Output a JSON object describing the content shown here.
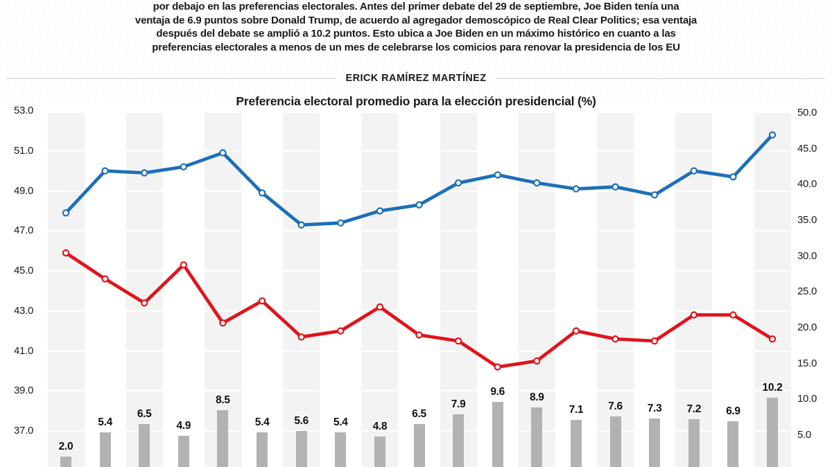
{
  "intro": {
    "lines": [
      "por debajo en las preferencias electorales. Antes del primer debate del 29 de septiembre, Joe Biden tenía una",
      "ventaja de 6.9 puntos sobre Donald Trump, de acuerdo al agregador demoscópico de Real Clear Politics; esa ventaja",
      "después del debate se amplió a 10.2 puntos. Esto ubica a Joe Biden en un máximo histórico en cuanto a las",
      "preferencias electorales a menos de un mes de celebrarse los comicios para renovar la presidencia de los EU"
    ]
  },
  "byline": "ERICK RAMÍREZ MARTÍNEZ",
  "chart_data": {
    "type": "line",
    "title": "Preferencia electoral promedio para la elección presidencial (%)",
    "subtitle": "",
    "x_labels_visible": false,
    "points_count": 19,
    "legend": "none",
    "grid": "faint horizontal",
    "background_stripes": "alternating light-gray vertical bands on odd points",
    "left_axis": {
      "min": 37.0,
      "max": 53.0,
      "step": 2.0,
      "ticks": [
        53.0,
        51.0,
        49.0,
        47.0,
        45.0,
        43.0,
        41.0,
        39.0,
        37.0
      ],
      "format": "one_decimal"
    },
    "right_axis": {
      "min": 5.0,
      "max": 50.0,
      "step": 5.0,
      "ticks": [
        50.0,
        45.0,
        40.0,
        35.0,
        30.0,
        25.0,
        20.0,
        15.0,
        10.0,
        5.0
      ],
      "format": "one_decimal"
    },
    "series": [
      {
        "id": "blue_line",
        "type": "line",
        "axis": "left",
        "color": "#1d6fb8",
        "marker": "open-circle",
        "values": [
          47.9,
          50.0,
          49.9,
          50.2,
          50.9,
          48.9,
          47.3,
          47.4,
          48.0,
          48.3,
          49.4,
          49.8,
          49.4,
          49.1,
          49.2,
          48.8,
          50.0,
          49.7,
          51.8
        ]
      },
      {
        "id": "red_line",
        "type": "line",
        "axis": "left",
        "color": "#e0141b",
        "marker": "open-circle",
        "values": [
          45.9,
          44.6,
          43.4,
          45.3,
          42.4,
          43.5,
          41.7,
          42.0,
          43.2,
          41.8,
          41.5,
          40.2,
          40.5,
          42.0,
          41.6,
          41.5,
          42.8,
          42.8,
          41.6
        ]
      },
      {
        "id": "gap_bars",
        "type": "bar",
        "axis": "right",
        "color": "#b2b2b2",
        "labels_shown": true,
        "label_format": "one_decimal",
        "values": [
          2.0,
          5.4,
          6.5,
          4.9,
          8.5,
          5.4,
          5.6,
          5.4,
          4.8,
          6.5,
          7.9,
          9.6,
          8.9,
          7.1,
          7.6,
          7.3,
          7.2,
          6.9,
          10.2
        ]
      }
    ]
  }
}
